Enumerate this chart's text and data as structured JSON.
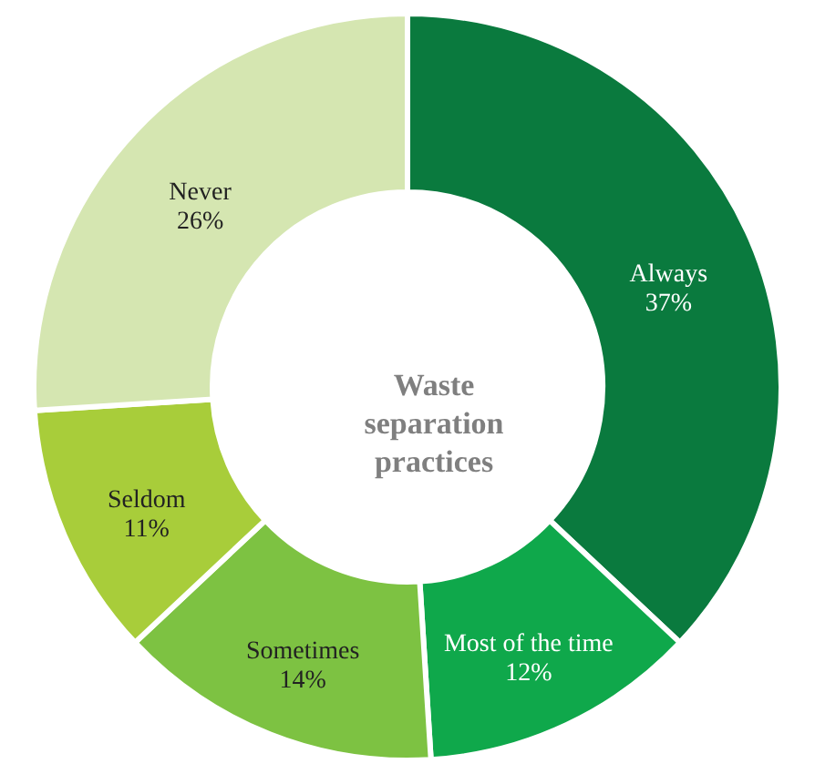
{
  "chart_data": {
    "type": "donut",
    "title": "Waste separation practices",
    "categories": [
      "Always",
      "Most of the time",
      "Sometimes",
      "Seldom",
      "Never"
    ],
    "values": [
      37,
      12,
      14,
      11,
      26
    ],
    "value_labels": [
      "37%",
      "12%",
      "14%",
      "11%",
      "26%"
    ],
    "colors": [
      "#0a7a3e",
      "#0fa84b",
      "#7dc242",
      "#a8cd3a",
      "#d5e6b1"
    ]
  }
}
